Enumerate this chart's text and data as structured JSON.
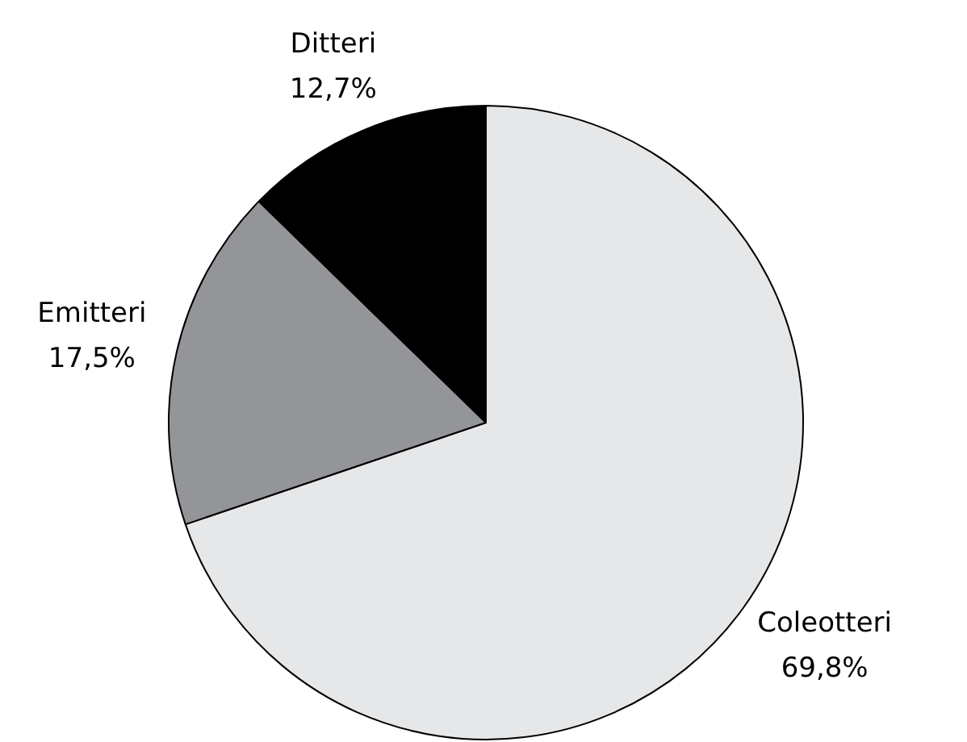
{
  "chart_data": {
    "type": "pie",
    "categories": [
      "Coleotteri",
      "Emitteri",
      "Ditteri"
    ],
    "values": [
      69.8,
      17.5,
      12.7
    ],
    "colors": [
      "#e6e7e8",
      "#939598",
      "#000000"
    ],
    "value_labels": [
      "69,8%",
      "17,5%",
      "12,7%"
    ]
  }
}
